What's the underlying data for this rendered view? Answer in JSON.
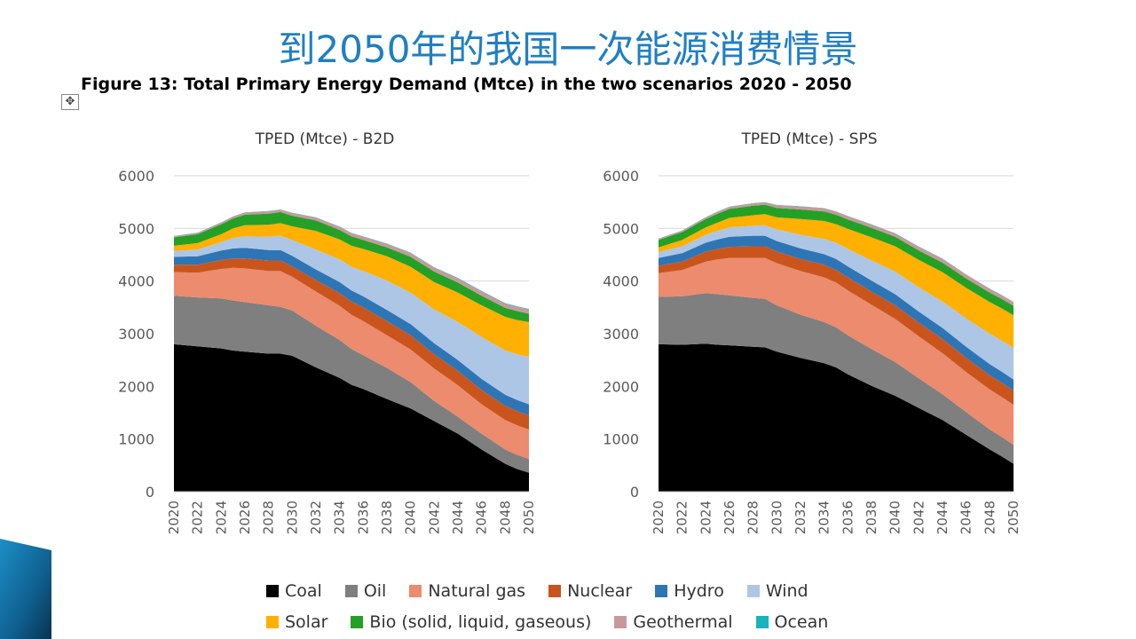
{
  "slide": {
    "title": "到2050年的我国一次能源消费情景",
    "caption": "Figure 13: Total Primary Energy Demand (Mtce) in the two scenarios 2020 - 2050",
    "move_handle_icon": "move-handle-icon"
  },
  "legend": [
    {
      "name": "Coal",
      "color": "#000000"
    },
    {
      "name": "Oil",
      "color": "#7f7f7f"
    },
    {
      "name": "Natural gas",
      "color": "#ec8b6d"
    },
    {
      "name": "Nuclear",
      "color": "#c9551d"
    },
    {
      "name": "Hydro",
      "color": "#2e75b6"
    },
    {
      "name": "Wind",
      "color": "#adc6e6"
    },
    {
      "name": "Solar",
      "color": "#ffb000"
    },
    {
      "name": "Bio (solid, liquid, gaseous)",
      "color": "#25a027"
    },
    {
      "name": "Geothermal",
      "color": "#c9999a"
    },
    {
      "name": "Ocean",
      "color": "#18b3bf"
    }
  ],
  "chart_data": [
    {
      "type": "area",
      "stacked": true,
      "title": "TPED (Mtce) - B2D",
      "xlabel": "",
      "ylabel": "",
      "ylim": [
        0,
        6000
      ],
      "yticks": [
        0,
        1000,
        2000,
        3000,
        4000,
        5000,
        6000
      ],
      "x": [
        2020,
        2022,
        2024,
        2025,
        2026,
        2028,
        2029,
        2030,
        2032,
        2034,
        2035,
        2036,
        2038,
        2040,
        2042,
        2044,
        2046,
        2048,
        2049,
        2050
      ],
      "xtick_labels": [
        "2020",
        "2022",
        "2024",
        "2026",
        "2028",
        "2030",
        "2032",
        "2034",
        "2036",
        "2038",
        "2040",
        "2042",
        "2044",
        "2046",
        "2048",
        "2050"
      ],
      "series": [
        {
          "name": "Coal",
          "values": [
            2800,
            2760,
            2720,
            2680,
            2660,
            2620,
            2620,
            2580,
            2360,
            2160,
            2030,
            1950,
            1760,
            1580,
            1340,
            1100,
            800,
            530,
            430,
            360
          ]
        },
        {
          "name": "Oil",
          "values": [
            920,
            930,
            950,
            950,
            940,
            920,
            890,
            860,
            790,
            720,
            680,
            640,
            590,
            500,
            380,
            320,
            300,
            270,
            270,
            260
          ]
        },
        {
          "name": "Natural gas",
          "values": [
            450,
            470,
            560,
            620,
            640,
            650,
            680,
            640,
            650,
            650,
            650,
            650,
            620,
            620,
            620,
            600,
            560,
            560,
            560,
            560
          ]
        },
        {
          "name": "Nuclear",
          "values": [
            140,
            150,
            170,
            180,
            190,
            200,
            200,
            200,
            220,
            240,
            250,
            260,
            270,
            270,
            270,
            270,
            270,
            270,
            270,
            270
          ]
        },
        {
          "name": "Hydro",
          "values": [
            150,
            160,
            180,
            190,
            200,
            200,
            200,
            200,
            200,
            210,
            210,
            210,
            210,
            210,
            210,
            210,
            210,
            210,
            210,
            210
          ]
        },
        {
          "name": "Wind",
          "values": [
            110,
            130,
            160,
            200,
            220,
            250,
            270,
            300,
            380,
            430,
            450,
            480,
            560,
            600,
            640,
            720,
            800,
            840,
            870,
            900
          ]
        },
        {
          "name": "Solar",
          "values": [
            100,
            120,
            150,
            180,
            210,
            230,
            240,
            260,
            350,
            380,
            400,
            420,
            460,
            490,
            520,
            560,
            600,
            640,
            650,
            660
          ]
        },
        {
          "name": "Bio (solid, liquid, gaseous)",
          "values": [
            160,
            170,
            190,
            190,
            200,
            210,
            210,
            200,
            200,
            180,
            180,
            170,
            170,
            190,
            200,
            190,
            180,
            170,
            170,
            160
          ]
        },
        {
          "name": "Geothermal",
          "values": [
            20,
            25,
            30,
            35,
            40,
            45,
            45,
            50,
            55,
            60,
            60,
            62,
            65,
            70,
            75,
            80,
            80,
            80,
            80,
            80
          ]
        },
        {
          "name": "Ocean",
          "values": [
            5,
            5,
            5,
            5,
            5,
            5,
            5,
            5,
            5,
            5,
            5,
            5,
            8,
            8,
            8,
            10,
            10,
            10,
            10,
            10
          ]
        }
      ]
    },
    {
      "type": "area",
      "stacked": true,
      "title": "TPED (Mtce) - SPS",
      "xlabel": "",
      "ylabel": "",
      "ylim": [
        0,
        6000
      ],
      "yticks": [
        0,
        1000,
        2000,
        3000,
        4000,
        5000,
        6000
      ],
      "x": [
        2020,
        2022,
        2024,
        2025,
        2026,
        2028,
        2029,
        2030,
        2032,
        2034,
        2035,
        2036,
        2038,
        2040,
        2042,
        2044,
        2046,
        2048,
        2049,
        2050
      ],
      "xtick_labels": [
        "2020",
        "2022",
        "2024",
        "2026",
        "2028",
        "2030",
        "2032",
        "2034",
        "2036",
        "2038",
        "2040",
        "2042",
        "2044",
        "2046",
        "2048",
        "2050"
      ],
      "series": [
        {
          "name": "Coal",
          "values": [
            2800,
            2790,
            2810,
            2790,
            2780,
            2750,
            2740,
            2660,
            2540,
            2440,
            2360,
            2230,
            2010,
            1820,
            1590,
            1360,
            1080,
            800,
            670,
            530
          ]
        },
        {
          "name": "Oil",
          "values": [
            900,
            920,
            960,
            960,
            950,
            930,
            920,
            880,
            820,
            780,
            760,
            740,
            700,
            640,
            560,
            490,
            430,
            380,
            370,
            360
          ]
        },
        {
          "name": "Natural gas",
          "values": [
            450,
            500,
            600,
            660,
            710,
            760,
            780,
            800,
            830,
            850,
            850,
            850,
            840,
            820,
            800,
            780,
            760,
            760,
            760,
            760
          ]
        },
        {
          "name": "Nuclear",
          "values": [
            140,
            160,
            190,
            200,
            210,
            220,
            220,
            220,
            230,
            240,
            240,
            250,
            250,
            260,
            260,
            270,
            270,
            270,
            270,
            270
          ]
        },
        {
          "name": "Hydro",
          "values": [
            150,
            160,
            170,
            180,
            190,
            200,
            200,
            200,
            200,
            200,
            210,
            210,
            210,
            210,
            210,
            210,
            210,
            210,
            210,
            210
          ]
        },
        {
          "name": "Wind",
          "values": [
            110,
            130,
            150,
            160,
            180,
            190,
            200,
            220,
            260,
            290,
            310,
            330,
            380,
            430,
            460,
            500,
            540,
            580,
            590,
            600
          ]
        },
        {
          "name": "Solar",
          "values": [
            90,
            120,
            140,
            160,
            180,
            200,
            210,
            230,
            300,
            340,
            350,
            380,
            440,
            480,
            520,
            560,
            580,
            600,
            610,
            620
          ]
        },
        {
          "name": "Bio (solid, liquid, gaseous)",
          "values": [
            140,
            150,
            160,
            170,
            170,
            180,
            180,
            180,
            180,
            180,
            180,
            180,
            180,
            180,
            180,
            180,
            180,
            180,
            180,
            180
          ]
        },
        {
          "name": "Geothermal",
          "values": [
            20,
            25,
            30,
            35,
            40,
            45,
            45,
            50,
            55,
            60,
            60,
            60,
            62,
            65,
            70,
            70,
            70,
            70,
            70,
            70
          ]
        },
        {
          "name": "Ocean",
          "values": [
            5,
            5,
            5,
            5,
            5,
            5,
            5,
            5,
            5,
            5,
            5,
            5,
            5,
            5,
            5,
            5,
            5,
            5,
            5,
            5
          ]
        }
      ]
    }
  ]
}
